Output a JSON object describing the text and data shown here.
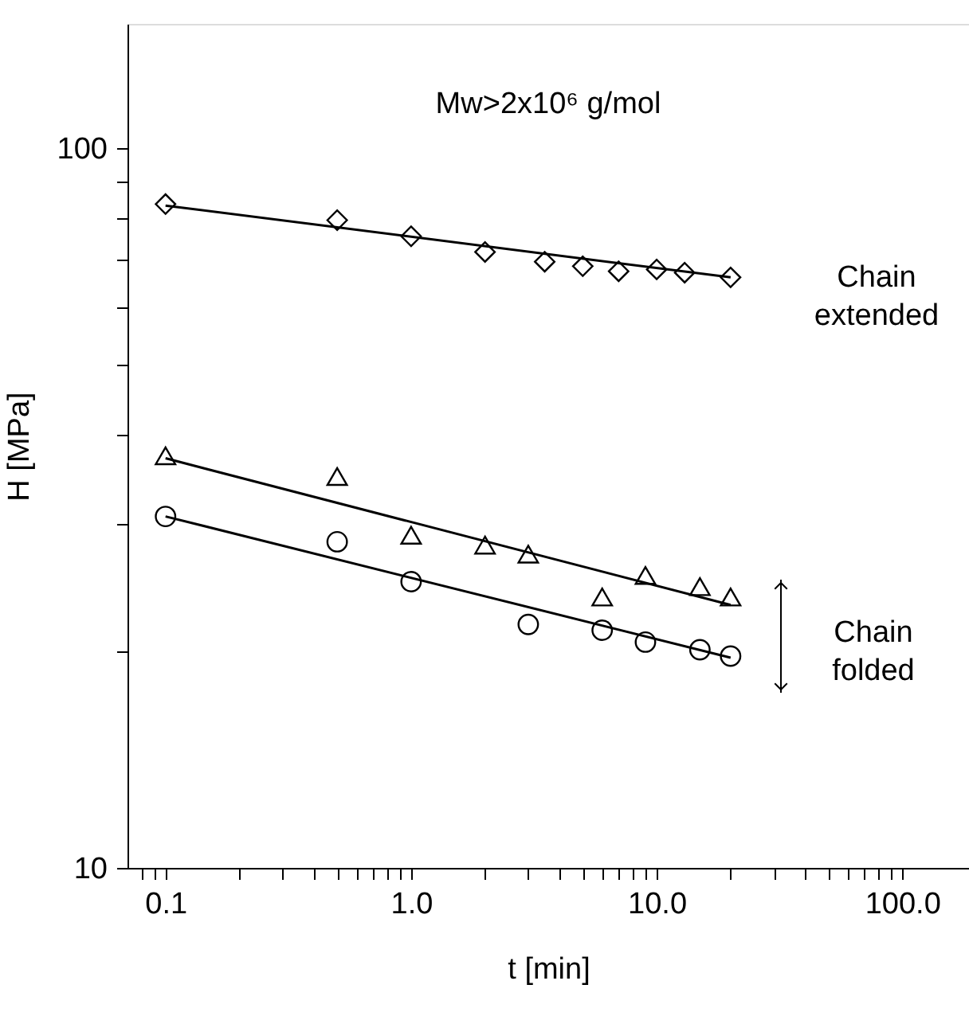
{
  "chart_data": {
    "type": "scatter",
    "title": "Mw>2x10⁶ g/mol",
    "xlabel": "t [min]",
    "ylabel": "H [MPa]",
    "log": "xy",
    "grid": false,
    "xlim": [
      0.07,
      187
    ],
    "xticks": [
      {
        "value": 0.08,
        "label": null
      },
      {
        "value": 0.09,
        "label": null
      },
      {
        "value": 0.1,
        "label": "0.1"
      },
      {
        "value": 0.2,
        "label": null
      },
      {
        "value": 0.3,
        "label": null
      },
      {
        "value": 0.4,
        "label": null
      },
      {
        "value": 0.5,
        "label": null
      },
      {
        "value": 0.6,
        "label": null
      },
      {
        "value": 0.7,
        "label": null
      },
      {
        "value": 0.8,
        "label": null
      },
      {
        "value": 0.9,
        "label": null
      },
      {
        "value": 1,
        "label": "1.0"
      },
      {
        "value": 2,
        "label": null
      },
      {
        "value": 3,
        "label": null
      },
      {
        "value": 4,
        "label": null
      },
      {
        "value": 5,
        "label": null
      },
      {
        "value": 6,
        "label": null
      },
      {
        "value": 7,
        "label": null
      },
      {
        "value": 8,
        "label": null
      },
      {
        "value": 9,
        "label": null
      },
      {
        "value": 10,
        "label": "10.0"
      },
      {
        "value": 20,
        "label": null
      },
      {
        "value": 30,
        "label": null
      },
      {
        "value": 40,
        "label": null
      },
      {
        "value": 50,
        "label": null
      },
      {
        "value": 60,
        "label": null
      },
      {
        "value": 70,
        "label": null
      },
      {
        "value": 80,
        "label": null
      },
      {
        "value": 90,
        "label": null
      },
      {
        "value": 100,
        "label": "100.0"
      }
    ],
    "ylim": [
      10,
      149
    ],
    "yticks": [
      10,
      {
        "value": 20,
        "label": null
      },
      {
        "value": 30,
        "label": null
      },
      {
        "value": 40,
        "label": null
      },
      {
        "value": 50,
        "label": null
      },
      {
        "value": 60,
        "label": null
      },
      {
        "value": 70,
        "label": null
      },
      {
        "value": 80,
        "label": null
      },
      {
        "value": 90,
        "label": null
      },
      100
    ],
    "series": [
      {
        "marker": "diamond",
        "color": "#000000",
        "x": [
          0.1,
          0.5,
          1,
          2,
          3.5,
          5,
          7,
          10,
          13,
          20
        ],
        "values": [
          83.7,
          79.5,
          75.5,
          71.8,
          69.6,
          68.6,
          67.5,
          67.9,
          67.2,
          66.2
        ]
      },
      {
        "marker": "triangle",
        "color": "#000000",
        "x": [
          0.1,
          0.5,
          1,
          2,
          3,
          6,
          9,
          15,
          20
        ],
        "values": [
          37.4,
          35.0,
          29.0,
          28.1,
          27.3,
          23.8,
          25.5,
          24.6,
          23.8
        ]
      },
      {
        "marker": "circle",
        "color": "#000000",
        "x": [
          0.1,
          0.5,
          1,
          3,
          6,
          9,
          15,
          20
        ],
        "values": [
          30.8,
          28.4,
          25.0,
          21.8,
          21.4,
          20.6,
          20.1,
          19.7
        ]
      },
      {
        "type": "line",
        "line_style": "solid",
        "color": "#000000",
        "x": [
          0.1,
          20
        ],
        "values": [
          83.3,
          66.2
        ]
      },
      {
        "type": "line",
        "line_style": "solid",
        "color": "#000000",
        "x": [
          0.1,
          20
        ],
        "values": [
          37.1,
          23.2
        ]
      },
      {
        "type": "line",
        "line_style": "solid",
        "color": "#000000",
        "x": [
          0.1,
          20
        ],
        "values": [
          30.8,
          19.6
        ]
      }
    ],
    "annotations": [
      "Chain\nextended",
      "Chain\nfolded"
    ]
  }
}
